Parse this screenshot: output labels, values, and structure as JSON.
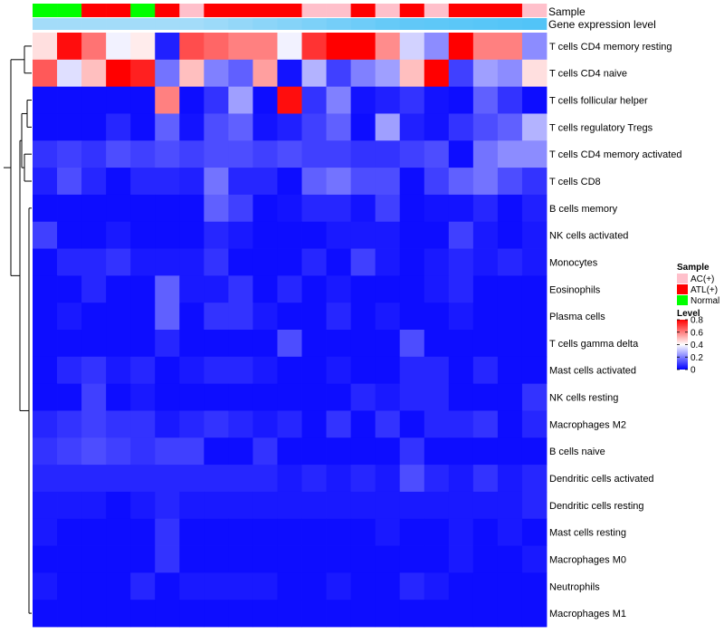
{
  "chart_data": {
    "type": "heatmap",
    "annotation_labels": [
      "Sample",
      "Gene expression level"
    ],
    "row_labels": [
      "T cells CD4 memory resting",
      "T cells CD4 naive",
      "T cells follicular helper",
      "T cells regulatory  Tregs",
      "T cells CD4 memory activated",
      "T cells CD8",
      "B cells memory",
      "NK cells activated",
      "Monocytes",
      "Eosinophils",
      "Plasma cells",
      "T cells gamma delta",
      "Mast cells activated",
      "NK cells resting",
      "Macrophages M2",
      "B cells naive",
      "Dendritic cells activated",
      "Dendritic cells resting",
      "Mast cells resting",
      "Macrophages M0",
      "Neutrophils",
      "Macrophages M1"
    ],
    "sample_groups": [
      "Normal",
      "Normal",
      "ATL(+)",
      "ATL(+)",
      "Normal",
      "ATL(+)",
      "AC(+)",
      "ATL(+)",
      "ATL(+)",
      "ATL(+)",
      "ATL(+)",
      "AC(+)",
      "AC(+)",
      "ATL(+)",
      "AC(+)",
      "ATL(+)",
      "AC(+)",
      "ATL(+)",
      "ATL(+)",
      "ATL(+)",
      "AC(+)"
    ],
    "expression_level_bar": [
      0.45,
      0.45,
      0.45,
      0.45,
      0.45,
      0.45,
      0.45,
      0.5,
      0.55,
      0.6,
      0.65,
      0.7,
      0.75,
      0.8,
      0.85,
      0.88,
      0.9,
      0.92,
      0.94,
      0.96,
      0.98
    ],
    "values": [
      [
        0.45,
        0.78,
        0.62,
        0.38,
        0.43,
        0.05,
        0.68,
        0.64,
        0.6,
        0.6,
        0.38,
        0.72,
        0.8,
        0.8,
        0.58,
        0.33,
        0.22,
        0.8,
        0.6,
        0.6,
        0.22
      ],
      [
        0.66,
        0.35,
        0.5,
        0.8,
        0.75,
        0.18,
        0.5,
        0.2,
        0.15,
        0.55,
        0.03,
        0.28,
        0.1,
        0.2,
        0.25,
        0.5,
        0.8,
        0.1,
        0.25,
        0.22,
        0.45
      ],
      [
        0.02,
        0.02,
        0.02,
        0.02,
        0.02,
        0.6,
        0.02,
        0.08,
        0.25,
        0.02,
        0.78,
        0.08,
        0.2,
        0.03,
        0.05,
        0.08,
        0.03,
        0.02,
        0.15,
        0.08,
        0.02
      ],
      [
        0.02,
        0.02,
        0.02,
        0.06,
        0.02,
        0.15,
        0.03,
        0.12,
        0.15,
        0.03,
        0.05,
        0.1,
        0.15,
        0.02,
        0.25,
        0.05,
        0.03,
        0.08,
        0.12,
        0.15,
        0.28
      ],
      [
        0.08,
        0.1,
        0.08,
        0.12,
        0.1,
        0.12,
        0.1,
        0.12,
        0.12,
        0.1,
        0.12,
        0.1,
        0.1,
        0.08,
        0.08,
        0.1,
        0.12,
        0.02,
        0.18,
        0.22,
        0.22
      ],
      [
        0.05,
        0.12,
        0.06,
        0.02,
        0.06,
        0.06,
        0.05,
        0.18,
        0.06,
        0.06,
        0.02,
        0.15,
        0.18,
        0.12,
        0.12,
        0.02,
        0.1,
        0.15,
        0.18,
        0.12,
        0.08
      ],
      [
        0.02,
        0.02,
        0.02,
        0.02,
        0.02,
        0.02,
        0.02,
        0.15,
        0.1,
        0.02,
        0.03,
        0.06,
        0.06,
        0.03,
        0.1,
        0.02,
        0.03,
        0.03,
        0.06,
        0.02,
        0.05
      ],
      [
        0.1,
        0.02,
        0.02,
        0.04,
        0.02,
        0.02,
        0.02,
        0.06,
        0.04,
        0.02,
        0.02,
        0.02,
        0.04,
        0.04,
        0.04,
        0.02,
        0.02,
        0.1,
        0.04,
        0.02,
        0.04
      ],
      [
        0.02,
        0.06,
        0.06,
        0.08,
        0.04,
        0.04,
        0.04,
        0.08,
        0.02,
        0.02,
        0.02,
        0.06,
        0.02,
        0.1,
        0.04,
        0.02,
        0.04,
        0.06,
        0.04,
        0.06,
        0.04
      ],
      [
        0.02,
        0.02,
        0.06,
        0.02,
        0.02,
        0.15,
        0.04,
        0.04,
        0.08,
        0.02,
        0.06,
        0.02,
        0.04,
        0.02,
        0.02,
        0.02,
        0.04,
        0.06,
        0.02,
        0.02,
        0.02
      ],
      [
        0.02,
        0.04,
        0.02,
        0.02,
        0.02,
        0.15,
        0.02,
        0.08,
        0.08,
        0.04,
        0.02,
        0.02,
        0.06,
        0.02,
        0.04,
        0.02,
        0.02,
        0.04,
        0.02,
        0.02,
        0.02
      ],
      [
        0.02,
        0.02,
        0.02,
        0.02,
        0.02,
        0.06,
        0.02,
        0.02,
        0.02,
        0.02,
        0.12,
        0.02,
        0.02,
        0.02,
        0.02,
        0.12,
        0.02,
        0.02,
        0.02,
        0.02,
        0.02
      ],
      [
        0.02,
        0.06,
        0.08,
        0.04,
        0.06,
        0.02,
        0.04,
        0.06,
        0.06,
        0.04,
        0.02,
        0.02,
        0.04,
        0.02,
        0.02,
        0.06,
        0.06,
        0.02,
        0.06,
        0.02,
        0.02
      ],
      [
        0.02,
        0.02,
        0.1,
        0.02,
        0.04,
        0.02,
        0.02,
        0.02,
        0.02,
        0.02,
        0.02,
        0.02,
        0.02,
        0.06,
        0.04,
        0.06,
        0.06,
        0.02,
        0.02,
        0.02,
        0.08
      ],
      [
        0.06,
        0.08,
        0.1,
        0.08,
        0.08,
        0.04,
        0.06,
        0.08,
        0.06,
        0.04,
        0.06,
        0.02,
        0.08,
        0.02,
        0.08,
        0.02,
        0.06,
        0.06,
        0.08,
        0.02,
        0.06
      ],
      [
        0.08,
        0.1,
        0.12,
        0.1,
        0.08,
        0.1,
        0.1,
        0.02,
        0.02,
        0.08,
        0.02,
        0.02,
        0.02,
        0.02,
        0.02,
        0.08,
        0.02,
        0.02,
        0.02,
        0.02,
        0.02
      ],
      [
        0.06,
        0.06,
        0.06,
        0.06,
        0.06,
        0.06,
        0.06,
        0.06,
        0.06,
        0.06,
        0.04,
        0.06,
        0.04,
        0.06,
        0.04,
        0.12,
        0.06,
        0.04,
        0.08,
        0.04,
        0.06
      ],
      [
        0.04,
        0.04,
        0.04,
        0.02,
        0.04,
        0.06,
        0.04,
        0.04,
        0.04,
        0.04,
        0.04,
        0.04,
        0.04,
        0.04,
        0.04,
        0.04,
        0.04,
        0.04,
        0.04,
        0.04,
        0.06
      ],
      [
        0.04,
        0.02,
        0.02,
        0.02,
        0.02,
        0.08,
        0.02,
        0.02,
        0.02,
        0.02,
        0.02,
        0.02,
        0.02,
        0.02,
        0.04,
        0.02,
        0.02,
        0.04,
        0.02,
        0.04,
        0.02
      ],
      [
        0.02,
        0.02,
        0.02,
        0.02,
        0.02,
        0.08,
        0.02,
        0.02,
        0.02,
        0.02,
        0.02,
        0.02,
        0.02,
        0.02,
        0.02,
        0.02,
        0.02,
        0.04,
        0.02,
        0.02,
        0.04
      ],
      [
        0.04,
        0.02,
        0.02,
        0.02,
        0.06,
        0.02,
        0.04,
        0.04,
        0.04,
        0.04,
        0.02,
        0.02,
        0.04,
        0.02,
        0.02,
        0.06,
        0.04,
        0.02,
        0.02,
        0.02,
        0.02
      ],
      [
        0.02,
        0.02,
        0.02,
        0.02,
        0.02,
        0.02,
        0.02,
        0.02,
        0.02,
        0.02,
        0.02,
        0.02,
        0.02,
        0.02,
        0.02,
        0.02,
        0.02,
        0.02,
        0.02,
        0.02,
        0.02
      ]
    ],
    "color_scale": {
      "min": 0,
      "max": 0.8,
      "colors": [
        "#0000ff",
        "#ffffff",
        "#ff0000"
      ]
    },
    "sample_legend": {
      "title": "Sample",
      "entries": [
        {
          "label": "AC(+)",
          "color": "#ffc0cb"
        },
        {
          "label": "ATL(+)",
          "color": "#ff0000"
        },
        {
          "label": "Normal",
          "color": "#00ff00"
        }
      ]
    },
    "level_legend": {
      "title": "Level",
      "ticks": [
        {
          "value": 0.8,
          "label": "0.8"
        },
        {
          "value": 0.6,
          "label": "0.6"
        },
        {
          "value": 0.4,
          "label": "0.4"
        },
        {
          "value": 0.2,
          "label": "0.2"
        },
        {
          "value": 0,
          "label": "0"
        }
      ]
    }
  }
}
